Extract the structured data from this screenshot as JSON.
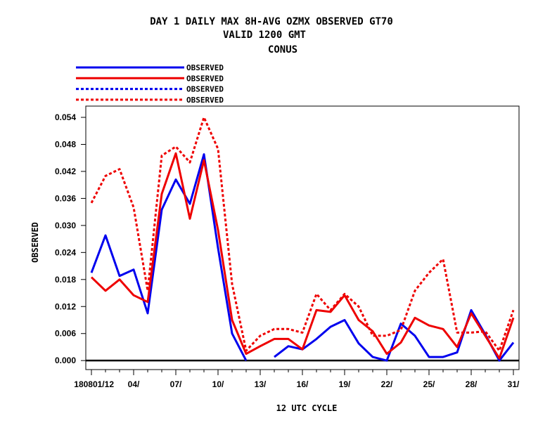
{
  "chart_data": {
    "type": "line",
    "title": [
      "DAY 1 DAILY MAX   8H-AVG OZMX OBSERVED GT70",
      "VALID 1200 GMT",
      "CONUS"
    ],
    "xlabel": "12 UTC CYCLE",
    "ylabel": "OBSERVED",
    "xlim": [
      0.6,
      31.4
    ],
    "ylim": [
      -0.002,
      0.0565
    ],
    "x_ticks": [
      1,
      4,
      7,
      10,
      13,
      16,
      19,
      22,
      25,
      28,
      31
    ],
    "x_tick_labels": [
      "180801/12",
      "04/",
      "07/",
      "10/",
      "13/",
      "16/",
      "19/",
      "22/",
      "25/",
      "28/",
      "31/"
    ],
    "y_ticks": [
      0.0,
      0.006,
      0.012,
      0.018,
      0.024,
      0.03,
      0.036,
      0.042,
      0.048,
      0.054
    ],
    "y_tick_labels": [
      "0.000",
      "0.006",
      "0.012",
      "0.018",
      "0.024",
      "0.030",
      "0.036",
      "0.042",
      "0.048",
      "0.054"
    ],
    "legend_placement": "top-left",
    "series": [
      {
        "name": "OBSERVED",
        "color": "#0000ee",
        "style": "solid",
        "segments": [
          {
            "x": [
              1,
              2,
              3,
              4,
              5,
              6,
              7,
              8,
              9,
              10,
              11,
              12
            ],
            "y": [
              0.0195,
              0.0278,
              0.0188,
              0.0202,
              0.0105,
              0.0335,
              0.0402,
              0.0348,
              0.0458,
              0.025,
              0.006,
              0.0
            ]
          },
          {
            "x": [
              14,
              15,
              16,
              17,
              18,
              19,
              20,
              21,
              22,
              23,
              24,
              25,
              26,
              27,
              28,
              29,
              30,
              31
            ],
            "y": [
              0.0008,
              0.0032,
              0.0025,
              0.0048,
              0.0075,
              0.009,
              0.0038,
              0.0008,
              0.0,
              0.0082,
              0.0055,
              0.0008,
              0.0008,
              0.0018,
              0.0112,
              0.0058,
              0.0,
              0.004
            ]
          }
        ]
      },
      {
        "name": "OBSERVED",
        "color": "#ee0000",
        "style": "solid",
        "segments": [
          {
            "x": [
              1,
              2,
              3,
              4,
              5,
              6,
              7,
              8,
              9,
              10,
              11,
              12,
              13,
              14,
              15,
              16,
              17,
              18,
              19,
              20,
              21,
              22,
              23,
              24,
              25,
              26,
              27,
              28,
              29,
              30,
              31
            ],
            "y": [
              0.0185,
              0.0155,
              0.018,
              0.0145,
              0.013,
              0.037,
              0.046,
              0.0315,
              0.0445,
              0.029,
              0.009,
              0.0015,
              0.0032,
              0.0048,
              0.0048,
              0.0025,
              0.0112,
              0.0108,
              0.0145,
              0.009,
              0.0065,
              0.0015,
              0.004,
              0.0095,
              0.0078,
              0.007,
              0.003,
              0.0105,
              0.0055,
              0.0005,
              0.0095
            ]
          }
        ]
      },
      {
        "name": "OBSERVED",
        "color": "#0000ee",
        "style": "dashed",
        "segments": []
      },
      {
        "name": "OBSERVED",
        "color": "#ee0000",
        "style": "dashed",
        "segments": [
          {
            "x": [
              1,
              2,
              3,
              4,
              5,
              6,
              7,
              8,
              9,
              10,
              11,
              12,
              13,
              14,
              15,
              16,
              17,
              18,
              19,
              20,
              21,
              22,
              23,
              24,
              25,
              26,
              27,
              28,
              29,
              30,
              31
            ],
            "y": [
              0.035,
              0.041,
              0.0425,
              0.034,
              0.0155,
              0.0455,
              0.0475,
              0.044,
              0.054,
              0.047,
              0.017,
              0.0022,
              0.0055,
              0.007,
              0.007,
              0.0062,
              0.0148,
              0.0112,
              0.0148,
              0.012,
              0.0055,
              0.0055,
              0.0068,
              0.0155,
              0.0195,
              0.0225,
              0.0062,
              0.0062,
              0.0065,
              0.0022,
              0.0112
            ]
          }
        ]
      }
    ]
  }
}
